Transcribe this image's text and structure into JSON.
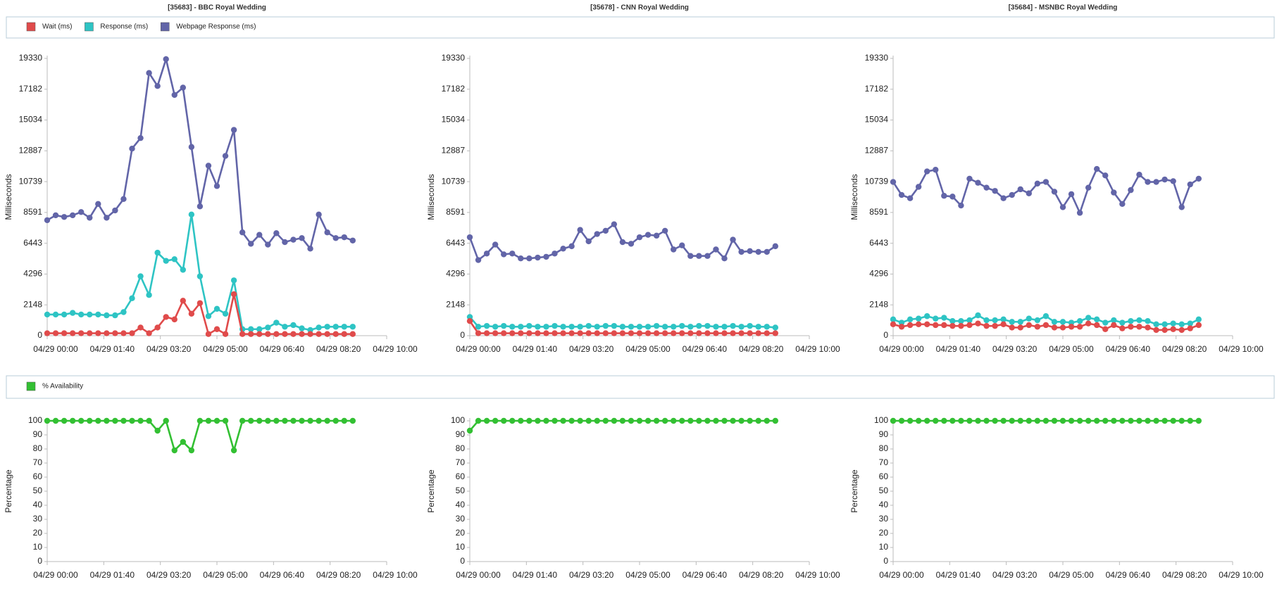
{
  "chart_data": [
    {
      "type": "line",
      "title": "[35683] - BBC Royal Wedding",
      "y_label": "Milliseconds",
      "x": [
        "04/29 00:00",
        "04/29 00:15",
        "04/29 00:30",
        "04/29 00:45",
        "04/29 01:00",
        "04/29 01:15",
        "04/29 01:30",
        "04/29 01:45",
        "04/29 02:00",
        "04/29 02:15",
        "04/29 02:30",
        "04/29 02:45",
        "04/29 03:00",
        "04/29 03:15",
        "04/29 03:30",
        "04/29 03:45",
        "04/29 04:00",
        "04/29 04:15",
        "04/29 04:30",
        "04/29 04:45",
        "04/29 05:00",
        "04/29 05:15",
        "04/29 05:30",
        "04/29 05:45",
        "04/29 06:00",
        "04/29 06:15",
        "04/29 06:30",
        "04/29 06:45",
        "04/29 07:00",
        "04/29 07:15",
        "04/29 07:30",
        "04/29 07:45",
        "04/29 08:00",
        "04/29 08:15",
        "04/29 08:30",
        "04/29 08:45",
        "04/29 09:00"
      ],
      "xlim": [
        "04/29 00:00",
        "04/29 10:00"
      ],
      "xticks": [
        "04/29 00:00",
        "04/29 01:40",
        "04/29 03:20",
        "04/29 05:00",
        "04/29 06:40",
        "04/29 08:20",
        "04/29 10:00"
      ],
      "ylim": [
        0,
        19330
      ],
      "yticks": [
        0,
        2148,
        4296,
        6443,
        8591,
        10739,
        12887,
        15034,
        17182,
        19330
      ],
      "series": [
        {
          "name": "Wait (ms)",
          "color": "#e04b4b",
          "values": [
            170,
            170,
            170,
            170,
            170,
            170,
            170,
            170,
            170,
            170,
            170,
            567,
            170,
            567,
            1304,
            1134,
            2438,
            1531,
            2268,
            113,
            454,
            113,
            2892,
            113,
            113,
            113,
            113,
            113,
            113,
            113,
            113,
            113,
            113,
            113,
            113,
            113,
            113
          ]
        },
        {
          "name": "Response (ms)",
          "color": "#2ec4c4",
          "values": [
            1474,
            1474,
            1474,
            1588,
            1474,
            1474,
            1474,
            1418,
            1418,
            1644,
            2608,
            4139,
            2835,
            5783,
            5216,
            5330,
            4593,
            8448,
            4139,
            1361,
            1871,
            1531,
            3856,
            454,
            454,
            454,
            567,
            907,
            624,
            737,
            510,
            397,
            567,
            624,
            624,
            624,
            624
          ]
        },
        {
          "name": "Webpage Response (ms)",
          "color": "#6265a8",
          "values": [
            8051,
            8392,
            8278,
            8392,
            8618,
            8222,
            9185,
            8222,
            8732,
            9526,
            13041,
            13778,
            18314,
            17407,
            19278,
            16783,
            17294,
            13154,
            9015,
            11850,
            10433,
            12531,
            14345,
            7201,
            6407,
            7031,
            6350,
            7144,
            6521,
            6691,
            6804,
            6067,
            8448,
            7201,
            6804,
            6861,
            6634
          ]
        }
      ]
    },
    {
      "type": "line",
      "title": "[35678] - CNN Royal Wedding",
      "y_label": "Milliseconds",
      "x": [
        "04/29 00:00",
        "04/29 00:15",
        "04/29 00:30",
        "04/29 00:45",
        "04/29 01:00",
        "04/29 01:15",
        "04/29 01:30",
        "04/29 01:45",
        "04/29 02:00",
        "04/29 02:15",
        "04/29 02:30",
        "04/29 02:45",
        "04/29 03:00",
        "04/29 03:15",
        "04/29 03:30",
        "04/29 03:45",
        "04/29 04:00",
        "04/29 04:15",
        "04/29 04:30",
        "04/29 04:45",
        "04/29 05:00",
        "04/29 05:15",
        "04/29 05:30",
        "04/29 05:45",
        "04/29 06:00",
        "04/29 06:15",
        "04/29 06:30",
        "04/29 06:45",
        "04/29 07:00",
        "04/29 07:15",
        "04/29 07:30",
        "04/29 07:45",
        "04/29 08:00",
        "04/29 08:15",
        "04/29 08:30",
        "04/29 08:45",
        "04/29 09:00"
      ],
      "xlim": [
        "04/29 00:00",
        "04/29 10:00"
      ],
      "xticks": [
        "04/29 00:00",
        "04/29 01:40",
        "04/29 03:20",
        "04/29 05:00",
        "04/29 06:40",
        "04/29 08:20",
        "04/29 10:00"
      ],
      "ylim": [
        0,
        19330
      ],
      "yticks": [
        0,
        2148,
        4296,
        6443,
        8591,
        10739,
        12887,
        15034,
        17182,
        19330
      ],
      "series": [
        {
          "color": "#e04b4b",
          "values": [
            1020,
            170,
            170,
            170,
            170,
            170,
            170,
            170,
            170,
            170,
            170,
            170,
            170,
            170,
            170,
            170,
            170,
            170,
            170,
            170,
            170,
            170,
            170,
            170,
            170,
            170,
            170,
            170,
            170,
            170,
            170,
            170,
            170,
            170,
            170,
            170,
            170
          ]
        },
        {
          "color": "#2ec4c4",
          "values": [
            1304,
            624,
            680,
            624,
            680,
            624,
            624,
            680,
            624,
            624,
            680,
            624,
            624,
            624,
            680,
            624,
            680,
            680,
            624,
            624,
            624,
            624,
            680,
            624,
            624,
            680,
            624,
            680,
            680,
            624,
            624,
            680,
            624,
            680,
            624,
            624,
            567
          ]
        },
        {
          "color": "#6265a8",
          "values": [
            6861,
            5273,
            5727,
            6350,
            5670,
            5727,
            5387,
            5387,
            5443,
            5500,
            5727,
            6067,
            6237,
            7371,
            6577,
            7088,
            7314,
            7768,
            6521,
            6407,
            6861,
            7031,
            6974,
            7314,
            6010,
            6294,
            5557,
            5557,
            5557,
            6010,
            5387,
            6691,
            5840,
            5897,
            5840,
            5840,
            6237
          ]
        }
      ]
    },
    {
      "type": "line",
      "title": "[35684] - MSNBC Royal Wedding",
      "y_label": "Milliseconds",
      "x": [
        "04/29 00:00",
        "04/29 00:15",
        "04/29 00:30",
        "04/29 00:45",
        "04/29 01:00",
        "04/29 01:15",
        "04/29 01:30",
        "04/29 01:45",
        "04/29 02:00",
        "04/29 02:15",
        "04/29 02:30",
        "04/29 02:45",
        "04/29 03:00",
        "04/29 03:15",
        "04/29 03:30",
        "04/29 03:45",
        "04/29 04:00",
        "04/29 04:15",
        "04/29 04:30",
        "04/29 04:45",
        "04/29 05:00",
        "04/29 05:15",
        "04/29 05:30",
        "04/29 05:45",
        "04/29 06:00",
        "04/29 06:15",
        "04/29 06:30",
        "04/29 06:45",
        "04/29 07:00",
        "04/29 07:15",
        "04/29 07:30",
        "04/29 07:45",
        "04/29 08:00",
        "04/29 08:15",
        "04/29 08:30",
        "04/29 08:45",
        "04/29 09:00"
      ],
      "xlim": [
        "04/29 00:00",
        "04/29 10:00"
      ],
      "xticks": [
        "04/29 00:00",
        "04/29 01:40",
        "04/29 03:20",
        "04/29 05:00",
        "04/29 06:40",
        "04/29 08:20",
        "04/29 10:00"
      ],
      "ylim": [
        0,
        19330
      ],
      "yticks": [
        0,
        2148,
        4296,
        6443,
        8591,
        10739,
        12887,
        15034,
        17182,
        19330
      ],
      "series": [
        {
          "color": "#e04b4b",
          "values": [
            794,
            624,
            737,
            794,
            794,
            737,
            737,
            680,
            680,
            737,
            850,
            680,
            680,
            794,
            567,
            567,
            737,
            624,
            737,
            567,
            567,
            624,
            624,
            850,
            737,
            454,
            737,
            510,
            624,
            624,
            567,
            397,
            397,
            454,
            397,
            510,
            737
          ]
        },
        {
          "color": "#2ec4c4",
          "values": [
            1134,
            907,
            1134,
            1191,
            1361,
            1191,
            1247,
            1021,
            1021,
            1077,
            1418,
            1077,
            1077,
            1134,
            964,
            964,
            1191,
            1077,
            1361,
            964,
            964,
            907,
            1021,
            1247,
            1134,
            907,
            1077,
            907,
            1021,
            1077,
            1021,
            794,
            794,
            850,
            794,
            850,
            1134
          ]
        },
        {
          "color": "#6265a8",
          "values": [
            10716,
            9809,
            9582,
            10376,
            11453,
            11567,
            9752,
            9696,
            9072,
            10943,
            10660,
            10319,
            10093,
            9582,
            9809,
            10206,
            9923,
            10603,
            10716,
            10036,
            8959,
            9866,
            8562,
            10319,
            11624,
            11170,
            9979,
            9185,
            10149,
            11227,
            10716,
            10716,
            10886,
            10773,
            8959,
            10546,
            10943
          ]
        }
      ]
    },
    {
      "type": "line",
      "y_label": "Percentage",
      "x": [
        "04/29 00:00",
        "04/29 00:15",
        "04/29 00:30",
        "04/29 00:45",
        "04/29 01:00",
        "04/29 01:15",
        "04/29 01:30",
        "04/29 01:45",
        "04/29 02:00",
        "04/29 02:15",
        "04/29 02:30",
        "04/29 02:45",
        "04/29 03:00",
        "04/29 03:15",
        "04/29 03:30",
        "04/29 03:45",
        "04/29 04:00",
        "04/29 04:15",
        "04/29 04:30",
        "04/29 04:45",
        "04/29 05:00",
        "04/29 05:15",
        "04/29 05:30",
        "04/29 05:45",
        "04/29 06:00",
        "04/29 06:15",
        "04/29 06:30",
        "04/29 06:45",
        "04/29 07:00",
        "04/29 07:15",
        "04/29 07:30",
        "04/29 07:45",
        "04/29 08:00",
        "04/29 08:15",
        "04/29 08:30",
        "04/29 08:45",
        "04/29 09:00"
      ],
      "xlim": [
        "04/29 00:00",
        "04/29 10:00"
      ],
      "xticks": [
        "04/29 00:00",
        "04/29 01:40",
        "04/29 03:20",
        "04/29 05:00",
        "04/29 06:40",
        "04/29 08:20",
        "04/29 10:00"
      ],
      "ylim": [
        0,
        100
      ],
      "yticks": [
        0,
        10,
        20,
        30,
        40,
        50,
        60,
        70,
        80,
        90,
        100
      ],
      "series": [
        {
          "name": "% Availability",
          "color": "#33c033",
          "values": [
            100,
            100,
            100,
            100,
            100,
            100,
            100,
            100,
            100,
            100,
            100,
            100,
            100,
            93,
            100,
            79,
            85,
            79,
            100,
            100,
            100,
            100,
            79,
            100,
            100,
            100,
            100,
            100,
            100,
            100,
            100,
            100,
            100,
            100,
            100,
            100,
            100
          ]
        }
      ]
    },
    {
      "type": "line",
      "y_label": "Percentage",
      "x": [
        "04/29 00:00",
        "04/29 00:15",
        "04/29 00:30",
        "04/29 00:45",
        "04/29 01:00",
        "04/29 01:15",
        "04/29 01:30",
        "04/29 01:45",
        "04/29 02:00",
        "04/29 02:15",
        "04/29 02:30",
        "04/29 02:45",
        "04/29 03:00",
        "04/29 03:15",
        "04/29 03:30",
        "04/29 03:45",
        "04/29 04:00",
        "04/29 04:15",
        "04/29 04:30",
        "04/29 04:45",
        "04/29 05:00",
        "04/29 05:15",
        "04/29 05:30",
        "04/29 05:45",
        "04/29 06:00",
        "04/29 06:15",
        "04/29 06:30",
        "04/29 06:45",
        "04/29 07:00",
        "04/29 07:15",
        "04/29 07:30",
        "04/29 07:45",
        "04/29 08:00",
        "04/29 08:15",
        "04/29 08:30",
        "04/29 08:45",
        "04/29 09:00"
      ],
      "xlim": [
        "04/29 00:00",
        "04/29 10:00"
      ],
      "xticks": [
        "04/29 00:00",
        "04/29 01:40",
        "04/29 03:20",
        "04/29 05:00",
        "04/29 06:40",
        "04/29 08:20",
        "04/29 10:00"
      ],
      "ylim": [
        0,
        100
      ],
      "yticks": [
        0,
        10,
        20,
        30,
        40,
        50,
        60,
        70,
        80,
        90,
        100
      ],
      "series": [
        {
          "color": "#33c033",
          "values": [
            93,
            100,
            100,
            100,
            100,
            100,
            100,
            100,
            100,
            100,
            100,
            100,
            100,
            100,
            100,
            100,
            100,
            100,
            100,
            100,
            100,
            100,
            100,
            100,
            100,
            100,
            100,
            100,
            100,
            100,
            100,
            100,
            100,
            100,
            100,
            100,
            100
          ]
        }
      ]
    },
    {
      "type": "line",
      "y_label": "Percentage",
      "x": [
        "04/29 00:00",
        "04/29 00:15",
        "04/29 00:30",
        "04/29 00:45",
        "04/29 01:00",
        "04/29 01:15",
        "04/29 01:30",
        "04/29 01:45",
        "04/29 02:00",
        "04/29 02:15",
        "04/29 02:30",
        "04/29 02:45",
        "04/29 03:00",
        "04/29 03:15",
        "04/29 03:30",
        "04/29 03:45",
        "04/29 04:00",
        "04/29 04:15",
        "04/29 04:30",
        "04/29 04:45",
        "04/29 05:00",
        "04/29 05:15",
        "04/29 05:30",
        "04/29 05:45",
        "04/29 06:00",
        "04/29 06:15",
        "04/29 06:30",
        "04/29 06:45",
        "04/29 07:00",
        "04/29 07:15",
        "04/29 07:30",
        "04/29 07:45",
        "04/29 08:00",
        "04/29 08:15",
        "04/29 08:30",
        "04/29 08:45",
        "04/29 09:00"
      ],
      "xlim": [
        "04/29 00:00",
        "04/29 10:00"
      ],
      "xticks": [
        "04/29 00:00",
        "04/29 01:40",
        "04/29 03:20",
        "04/29 05:00",
        "04/29 06:40",
        "04/29 08:20",
        "04/29 10:00"
      ],
      "ylim": [
        0,
        100
      ],
      "yticks": [
        0,
        10,
        20,
        30,
        40,
        50,
        60,
        70,
        80,
        90,
        100
      ],
      "series": [
        {
          "color": "#33c033",
          "values": [
            100,
            100,
            100,
            100,
            100,
            100,
            100,
            100,
            100,
            100,
            100,
            100,
            100,
            100,
            100,
            100,
            100,
            100,
            100,
            100,
            100,
            100,
            100,
            100,
            100,
            100,
            100,
            100,
            100,
            100,
            100,
            100,
            100,
            100,
            100,
            100,
            100
          ]
        }
      ]
    }
  ]
}
